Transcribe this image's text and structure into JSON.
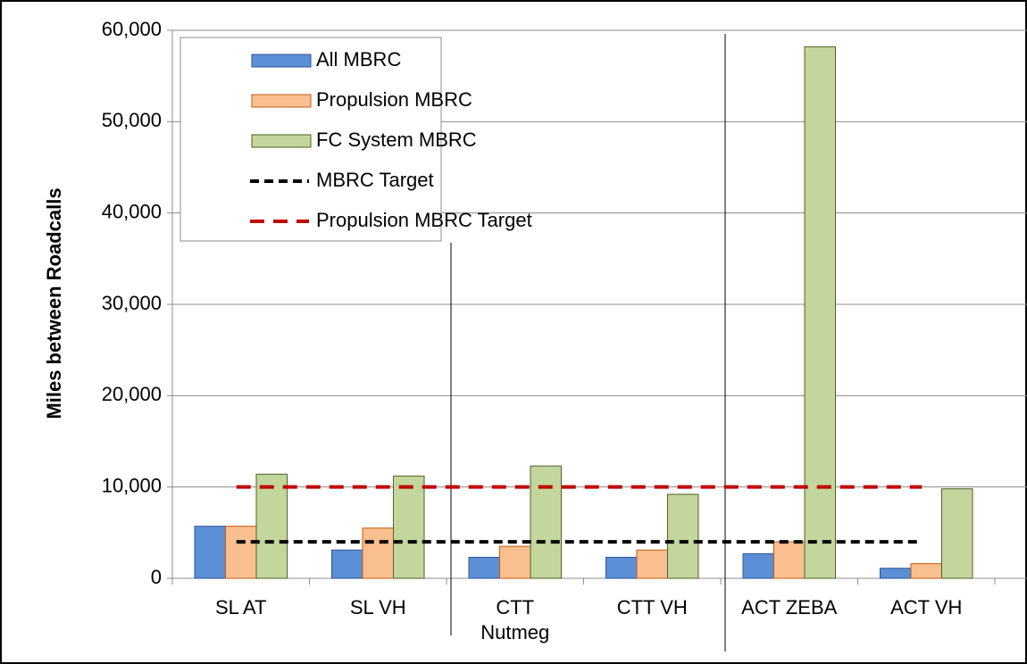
{
  "chart_data": {
    "type": "bar",
    "y_label": "Miles between Roadcalls",
    "categories": [
      "SL AT",
      "SL VH",
      [
        "CTT",
        "Nutmeg"
      ],
      "CTT VH",
      "ACT ZEBA",
      "ACT VH"
    ],
    "series": [
      {
        "name": "All MBRC",
        "color": "#5b8fd6",
        "values": [
          5700,
          3100,
          2300,
          2300,
          2700,
          1100
        ]
      },
      {
        "name": "Propulsion MBRC",
        "color": "#f9bf8f",
        "values": [
          5700,
          5500,
          3500,
          3100,
          4000,
          1600
        ]
      },
      {
        "name": "FC System MBRC",
        "color": "#c3d69b",
        "values": [
          11400,
          11200,
          12300,
          9200,
          58200,
          9800
        ]
      },
      {
        "name": "MBRC Target",
        "type": "line",
        "color": "#000000",
        "values": [
          4000,
          4000,
          4000,
          4000,
          4000,
          4000
        ]
      },
      {
        "name": "Propulsion MBRC Target",
        "type": "line",
        "color": "#c00000",
        "values": [
          10000,
          10000,
          10000,
          10000,
          10000,
          10000
        ]
      }
    ],
    "ylim": [
      0,
      60000
    ],
    "yticks": [
      0,
      {
        "value": 10000,
        "label": "10,000"
      },
      {
        "value": 20000,
        "label": "20,000"
      },
      {
        "value": 30000,
        "label": "30,000"
      },
      {
        "value": 40000,
        "label": "40,000"
      },
      {
        "value": 50000,
        "label": "50,000"
      },
      {
        "value": 60000,
        "label": "60,000"
      }
    ],
    "grid": true,
    "legend": "upper left"
  }
}
